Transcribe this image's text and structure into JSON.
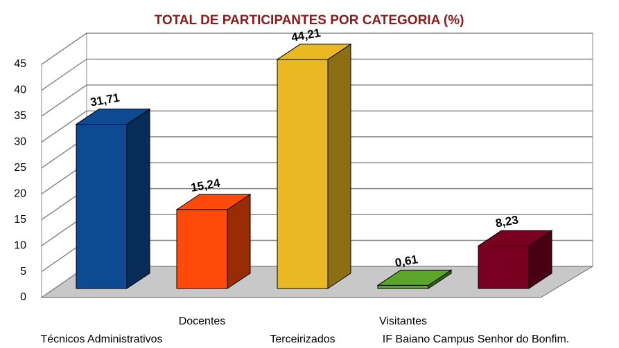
{
  "chart_data": {
    "type": "bar3d",
    "title": "TOTAL DE PARTICIPANTES POR CATEGORIA (%)",
    "categories": [
      "Técnicos Administrativos",
      "Docentes",
      "Terceirizados",
      "Visitantes",
      "IF Baiano Campus Senhor do Bonfim."
    ],
    "values": [
      31.71,
      15.24,
      44.21,
      0.61,
      8.23
    ],
    "value_labels": [
      "31,71",
      "15,24",
      "44,21",
      "0,61",
      "8,23"
    ],
    "colors": [
      "#0d4a92",
      "#ff4a0a",
      "#e9b923",
      "#5aa52a",
      "#7a0022"
    ],
    "ylim": [
      0,
      45
    ],
    "yticks": [
      0,
      5,
      10,
      15,
      20,
      25,
      30,
      35,
      40,
      45
    ],
    "grid": true
  }
}
